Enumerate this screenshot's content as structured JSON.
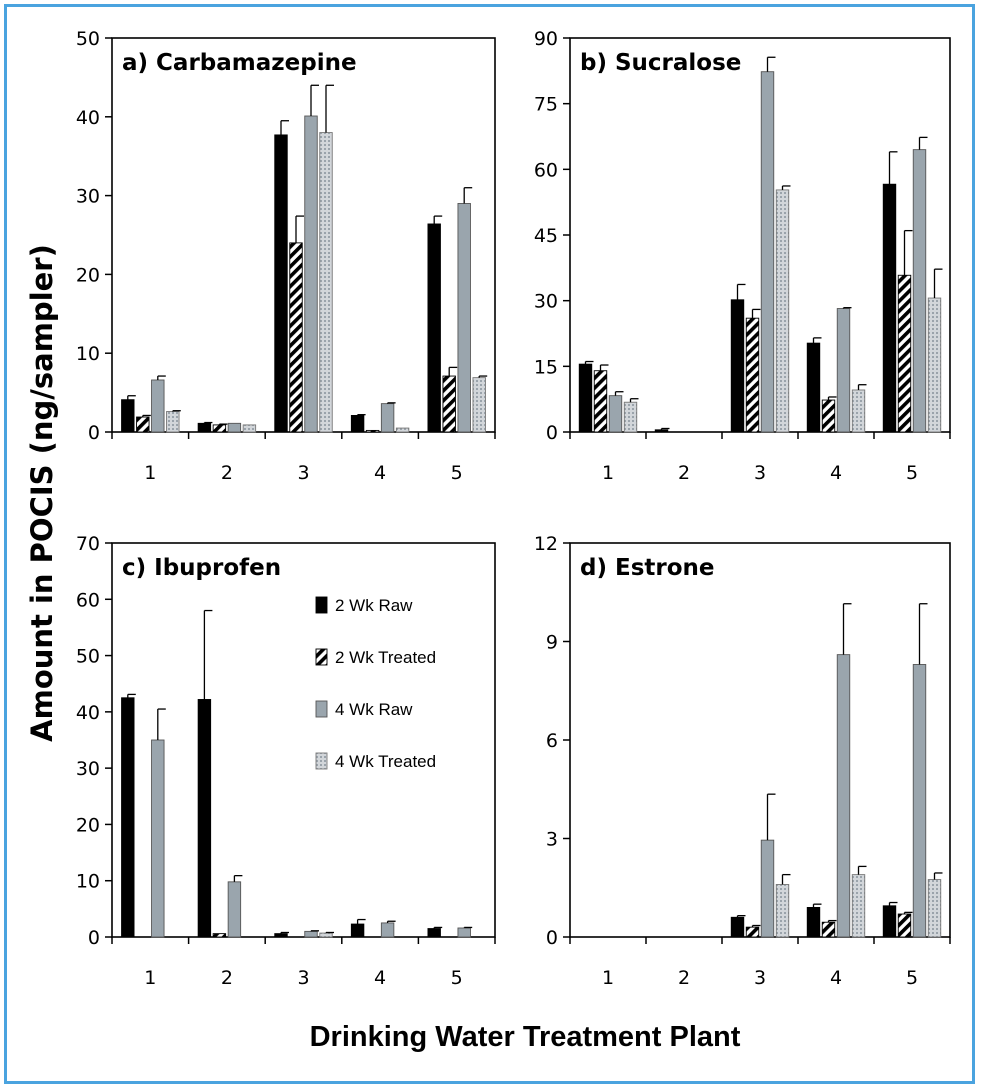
{
  "figure": {
    "ylabel": "Amount in POCIS (ng/sampler)",
    "xlabel": "Drinking Water Treatment Plant"
  },
  "legend": [
    "2 Wk Raw",
    "2 Wk Treated",
    "4 Wk Raw",
    "4 Wk Treated"
  ],
  "colors": {
    "raw2": "#000000",
    "raw4": "#9aa5ad",
    "treated4": "#c9ced3",
    "border": "#4aa3df"
  },
  "chart_data": [
    {
      "type": "bar",
      "title": "a) Carbamazepine",
      "categories": [
        "1",
        "2",
        "3",
        "4",
        "5"
      ],
      "ylim": [
        0,
        50
      ],
      "yticks": [
        0,
        10,
        20,
        30,
        40,
        50
      ],
      "series": [
        {
          "name": "2 Wk Raw",
          "values": [
            4.1,
            1.1,
            37.7,
            2.1,
            26.4
          ],
          "errors": [
            0.5,
            0.1,
            1.8,
            0.1,
            1.0
          ]
        },
        {
          "name": "2 Wk Treated",
          "values": [
            1.9,
            0.9,
            24.0,
            0.2,
            7.1
          ],
          "errors": [
            0.2,
            0.1,
            3.4,
            0.0,
            1.1
          ]
        },
        {
          "name": "4 Wk Raw",
          "values": [
            6.6,
            1.1,
            40.1,
            3.6,
            29.0
          ],
          "errors": [
            0.5,
            0.0,
            3.9,
            0.1,
            2.0
          ]
        },
        {
          "name": "4 Wk Treated",
          "values": [
            2.6,
            0.9,
            38.0,
            0.5,
            6.9
          ],
          "errors": [
            0.1,
            0.0,
            6.0,
            0.0,
            0.2
          ]
        }
      ]
    },
    {
      "type": "bar",
      "title": "b) Sucralose",
      "categories": [
        "1",
        "2",
        "3",
        "4",
        "5"
      ],
      "ylim": [
        0,
        90
      ],
      "yticks": [
        0,
        15,
        30,
        45,
        60,
        75,
        90
      ],
      "series": [
        {
          "name": "2 Wk Raw",
          "values": [
            15.5,
            0.5,
            30.2,
            20.3,
            56.6
          ],
          "errors": [
            0.6,
            0.3,
            3.5,
            1.2,
            7.4
          ]
        },
        {
          "name": "2 Wk Treated",
          "values": [
            14.0,
            0,
            26.0,
            7.3,
            35.8
          ],
          "errors": [
            1.3,
            0,
            2.0,
            0.7,
            10.2
          ]
        },
        {
          "name": "4 Wk Raw",
          "values": [
            8.3,
            0,
            82.3,
            28.2,
            64.5
          ],
          "errors": [
            0.9,
            0,
            3.3,
            0.2,
            2.8
          ]
        },
        {
          "name": "4 Wk Treated",
          "values": [
            6.8,
            0,
            55.3,
            9.6,
            30.6
          ],
          "errors": [
            0.8,
            0,
            0.9,
            1.2,
            6.6
          ]
        }
      ]
    },
    {
      "type": "bar",
      "title": "c) Ibuprofen",
      "categories": [
        "1",
        "2",
        "3",
        "4",
        "5"
      ],
      "ylim": [
        0,
        70
      ],
      "yticks": [
        0,
        10,
        20,
        30,
        40,
        50,
        60,
        70
      ],
      "series": [
        {
          "name": "2 Wk Raw",
          "values": [
            42.5,
            42.2,
            0.6,
            2.3,
            1.5
          ],
          "errors": [
            0.6,
            15.8,
            0.2,
            0.8,
            0.2
          ]
        },
        {
          "name": "2 Wk Treated",
          "values": [
            0,
            0.6,
            0,
            0,
            0
          ],
          "errors": [
            0,
            0,
            0,
            0,
            0
          ]
        },
        {
          "name": "4 Wk Raw",
          "values": [
            35.0,
            9.8,
            1.0,
            2.5,
            1.6
          ],
          "errors": [
            5.5,
            1.1,
            0.1,
            0.3,
            0.1
          ]
        },
        {
          "name": "4 Wk Treated",
          "values": [
            0,
            0,
            0.7,
            0,
            0
          ],
          "errors": [
            0,
            0,
            0.1,
            0,
            0
          ]
        }
      ]
    },
    {
      "type": "bar",
      "title": "d) Estrone",
      "categories": [
        "1",
        "2",
        "3",
        "4",
        "5"
      ],
      "ylim": [
        0,
        12
      ],
      "yticks": [
        0,
        3,
        6,
        9,
        12
      ],
      "series": [
        {
          "name": "2 Wk Raw",
          "values": [
            0,
            0,
            0.6,
            0.9,
            0.95
          ],
          "errors": [
            0,
            0,
            0.05,
            0.1,
            0.1
          ]
        },
        {
          "name": "2 Wk Treated",
          "values": [
            0,
            0,
            0.3,
            0.45,
            0.7
          ],
          "errors": [
            0,
            0,
            0.05,
            0.05,
            0.05
          ]
        },
        {
          "name": "4 Wk Raw",
          "values": [
            0,
            0,
            2.95,
            8.6,
            8.3
          ],
          "errors": [
            0,
            0,
            1.4,
            1.55,
            1.85
          ]
        },
        {
          "name": "4 Wk Treated",
          "values": [
            0,
            0,
            1.6,
            1.9,
            1.75
          ],
          "errors": [
            0,
            0,
            0.3,
            0.25,
            0.2
          ]
        }
      ]
    }
  ]
}
